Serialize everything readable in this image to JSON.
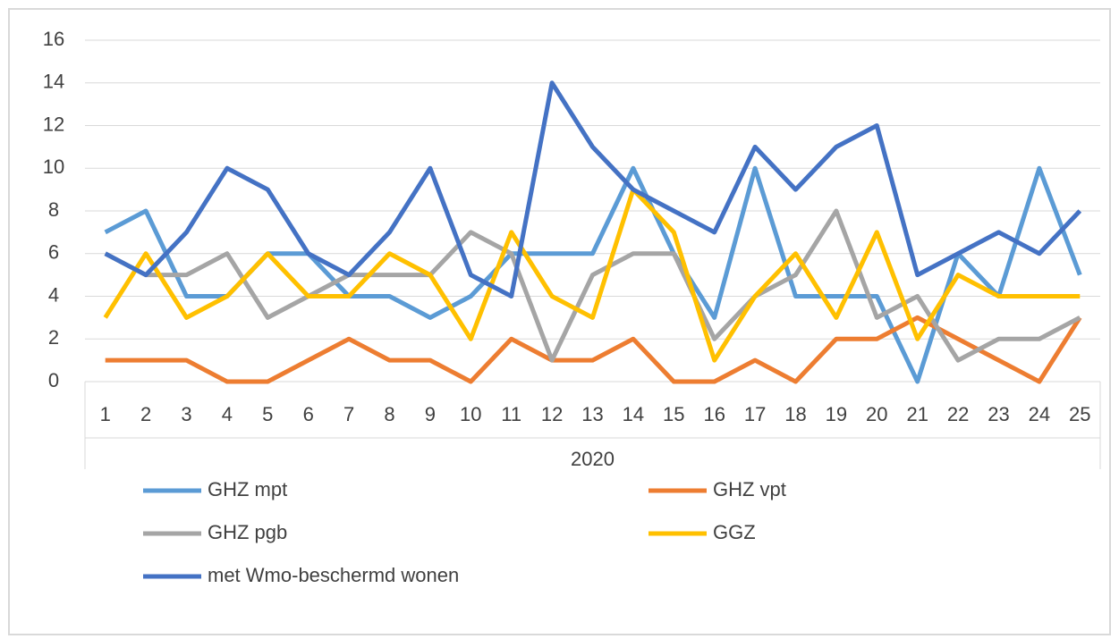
{
  "chart_data": {
    "type": "line",
    "categories": [
      "1",
      "2",
      "3",
      "4",
      "5",
      "6",
      "7",
      "8",
      "9",
      "10",
      "11",
      "12",
      "13",
      "14",
      "15",
      "16",
      "17",
      "18",
      "19",
      "20",
      "21",
      "22",
      "23",
      "24",
      "25"
    ],
    "x_label": "2020",
    "ylim": [
      0,
      16
    ],
    "yticks": [
      0,
      2,
      4,
      6,
      8,
      10,
      12,
      14,
      16
    ],
    "grid": true,
    "series": [
      {
        "name": "GHZ mpt",
        "color": "#5b9bd5",
        "values": [
          7,
          8,
          4,
          4,
          6,
          6,
          4,
          4,
          3,
          4,
          6,
          6,
          6,
          10,
          6,
          3,
          10,
          4,
          4,
          4,
          0,
          6,
          4,
          10,
          5
        ]
      },
      {
        "name": "GHZ vpt",
        "color": "#ed7d31",
        "values": [
          1,
          1,
          1,
          0,
          0,
          1,
          2,
          1,
          1,
          0,
          2,
          1,
          1,
          2,
          0,
          0,
          1,
          0,
          2,
          2,
          3,
          2,
          1,
          0,
          3
        ]
      },
      {
        "name": "GHZ pgb",
        "color": "#a5a5a5",
        "values": [
          6,
          5,
          5,
          6,
          3,
          4,
          5,
          5,
          5,
          7,
          6,
          1,
          5,
          6,
          6,
          2,
          4,
          5,
          8,
          3,
          4,
          1,
          2,
          2,
          3
        ]
      },
      {
        "name": "GGZ",
        "color": "#ffc000",
        "values": [
          3,
          6,
          3,
          4,
          6,
          4,
          4,
          6,
          5,
          2,
          7,
          4,
          3,
          9,
          7,
          1,
          4,
          6,
          3,
          7,
          2,
          5,
          4,
          4,
          4
        ]
      },
      {
        "name": "met Wmo-beschermd wonen",
        "color": "#4472c4",
        "values": [
          6,
          5,
          7,
          10,
          9,
          6,
          5,
          7,
          10,
          5,
          4,
          14,
          11,
          9,
          8,
          7,
          11,
          9,
          11,
          12,
          5,
          6,
          7,
          6,
          8
        ]
      }
    ]
  }
}
